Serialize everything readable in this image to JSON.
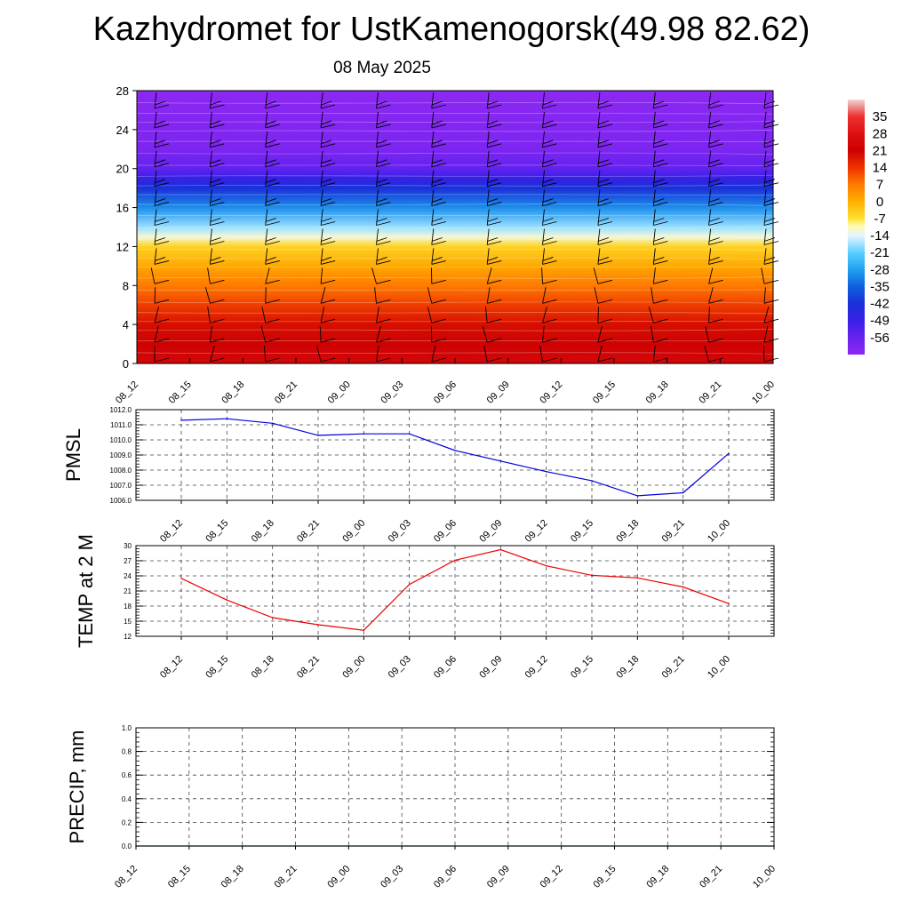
{
  "header": {
    "title": "Kazhydromet for UstKamenogorsk(49.98 82.62)",
    "subtitle": "08 May 2025"
  },
  "chart_data": [
    {
      "type": "heatmap",
      "panel": "cross_section",
      "title": "",
      "xlabel": "",
      "ylabel": "",
      "x_ticks": [
        "08_12",
        "08_15",
        "08_18",
        "08_21",
        "09_00",
        "09_03",
        "09_06",
        "09_09",
        "09_12",
        "09_15",
        "09_18",
        "09_21",
        "10_00"
      ],
      "y_ticks": [
        0,
        4,
        8,
        12,
        16,
        20,
        24,
        28
      ],
      "ylim": [
        0,
        28
      ],
      "colorbar": {
        "labels": [
          "35",
          "28",
          "21",
          "14",
          "7",
          "0",
          "-7",
          "-14",
          "-21",
          "-28",
          "-35",
          "-42",
          "-49",
          "-56"
        ],
        "vmin": -63,
        "vmax": 42,
        "stops": [
          {
            "v": 42,
            "c": "#f2d4d4"
          },
          {
            "v": 35,
            "c": "#ee3030"
          },
          {
            "v": 28,
            "c": "#dd1010"
          },
          {
            "v": 21,
            "c": "#cc0000"
          },
          {
            "v": 14,
            "c": "#ee3300"
          },
          {
            "v": 7,
            "c": "#ff7a00"
          },
          {
            "v": 0,
            "c": "#ffb000"
          },
          {
            "v": -7,
            "c": "#ffe030"
          },
          {
            "v": -10,
            "c": "#fffbb0"
          },
          {
            "v": -14,
            "c": "#e6f4ff"
          },
          {
            "v": -21,
            "c": "#5ccfff"
          },
          {
            "v": -28,
            "c": "#20a0f0"
          },
          {
            "v": -35,
            "c": "#1060e0"
          },
          {
            "v": -42,
            "c": "#1a30d8"
          },
          {
            "v": -49,
            "c": "#3a20e8"
          },
          {
            "v": -56,
            "c": "#6a22f0"
          },
          {
            "v": -63,
            "c": "#8c28f2"
          }
        ]
      },
      "temperature_profile": [
        {
          "alt": 0,
          "t": 24
        },
        {
          "alt": 2,
          "t": 22
        },
        {
          "alt": 4,
          "t": 19
        },
        {
          "alt": 6,
          "t": 13
        },
        {
          "alt": 8,
          "t": 7
        },
        {
          "alt": 10,
          "t": 1
        },
        {
          "alt": 12,
          "t": -5
        },
        {
          "alt": 13,
          "t": -12
        },
        {
          "alt": 14,
          "t": -18
        },
        {
          "alt": 16,
          "t": -30
        },
        {
          "alt": 18,
          "t": -42
        },
        {
          "alt": 19,
          "t": -48
        },
        {
          "alt": 20,
          "t": -55
        },
        {
          "alt": 22,
          "t": -60
        },
        {
          "alt": 24,
          "t": -61
        },
        {
          "alt": 28,
          "t": -63
        }
      ],
      "wind_barbs": "present"
    },
    {
      "type": "line",
      "panel": "pmsl",
      "ylabel": "PMSL",
      "x": [
        "08_12",
        "08_15",
        "08_18",
        "08_21",
        "09_00",
        "09_03",
        "09_06",
        "09_09",
        "09_12",
        "09_15",
        "09_18",
        "09_21",
        "10_00"
      ],
      "ylim": [
        1006.0,
        1012.0
      ],
      "y_ticks": [
        "1006.0",
        "1007.0",
        "1008.0",
        "1009.0",
        "1010.0",
        "1011.0",
        "1012.0"
      ],
      "series": [
        {
          "color": "#0000dd",
          "values": [
            1011.3,
            1011.4,
            1011.1,
            1010.3,
            1010.4,
            1010.4,
            1009.3,
            1008.6,
            1007.9,
            1007.3,
            1006.3,
            1006.5,
            1009.1
          ]
        }
      ]
    },
    {
      "type": "line",
      "panel": "temp2m",
      "ylabel": "TEMP at 2 M",
      "x": [
        "08_12",
        "08_15",
        "08_18",
        "08_21",
        "09_00",
        "09_03",
        "09_06",
        "09_09",
        "09_12",
        "09_15",
        "09_18",
        "09_21",
        "10_00"
      ],
      "ylim": [
        12,
        30
      ],
      "y_ticks": [
        "12",
        "15",
        "18",
        "21",
        "24",
        "27",
        "30"
      ],
      "series": [
        {
          "color": "#ee0000",
          "values": [
            23.5,
            19.2,
            15.7,
            14.3,
            13.2,
            22.3,
            27.1,
            29.2,
            26.0,
            24.1,
            23.6,
            21.8,
            18.5
          ]
        }
      ]
    },
    {
      "type": "line",
      "panel": "precip",
      "ylabel": "PRECIP, mm",
      "x": [
        "08_12",
        "08_15",
        "08_18",
        "08_21",
        "09_00",
        "09_03",
        "09_06",
        "09_09",
        "09_12",
        "09_15",
        "09_18",
        "09_21",
        "10_00"
      ],
      "ylim": [
        0.0,
        1.0
      ],
      "y_ticks": [
        "0.0",
        "0.2",
        "0.4",
        "0.6",
        "0.8",
        "1.0"
      ],
      "series": [
        {
          "color": "#006600",
          "values": [
            0,
            0,
            0,
            0,
            0,
            0,
            0,
            0,
            0,
            0,
            0,
            0,
            0
          ]
        }
      ]
    }
  ]
}
